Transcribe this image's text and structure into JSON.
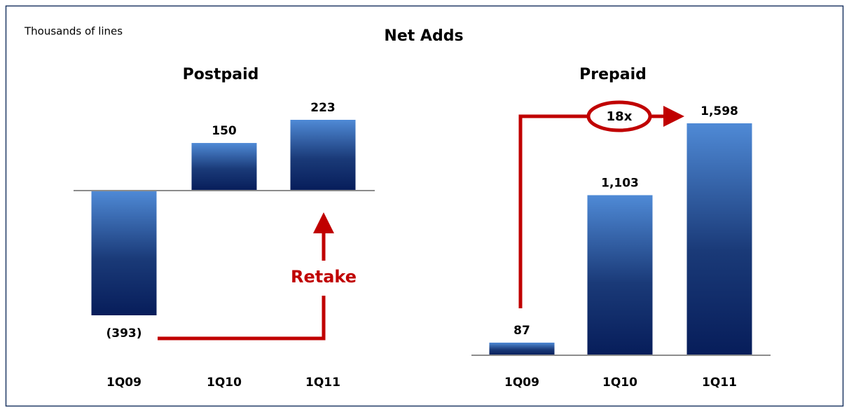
{
  "header": {
    "title": "Net Adds",
    "unit_note": "Thousands of lines"
  },
  "chart_data": [
    {
      "type": "bar",
      "title": "Postpaid",
      "categories": [
        "1Q09",
        "1Q10",
        "1Q11"
      ],
      "values": [
        -393,
        150,
        223
      ],
      "value_labels": [
        "(393)",
        "150",
        "223"
      ],
      "annotations": [
        "Retake"
      ]
    },
    {
      "type": "bar",
      "title": "Prepaid",
      "categories": [
        "1Q09",
        "1Q10",
        "1Q11"
      ],
      "values": [
        87,
        1103,
        1598
      ],
      "value_labels": [
        "87",
        "1,103",
        "1,598"
      ],
      "annotations": [
        "18x"
      ]
    }
  ]
}
